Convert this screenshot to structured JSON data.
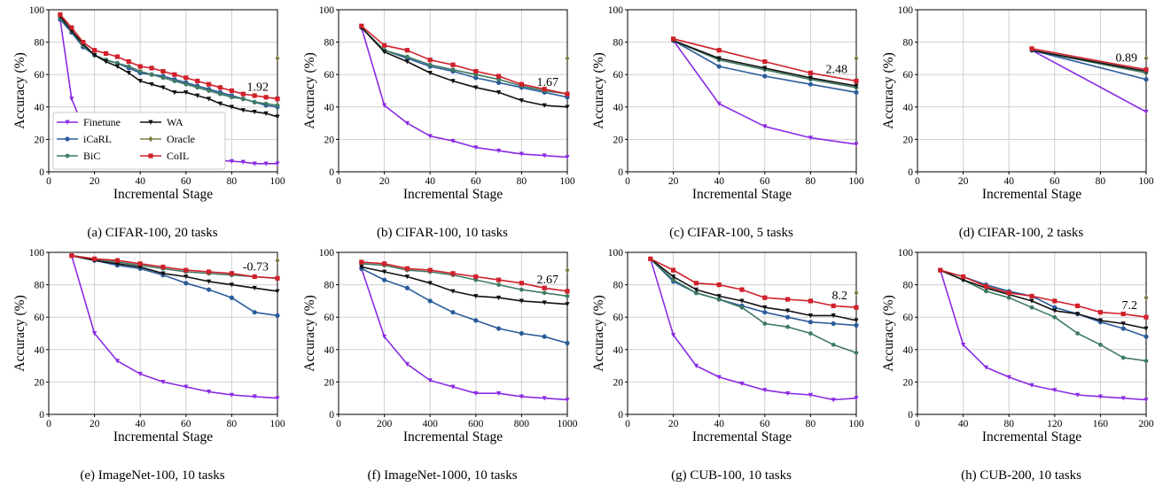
{
  "figure": {
    "colors": {
      "Finetune": "#8a2be2",
      "iCaRL": "#2a5c9a",
      "BiC": "#3f7a62",
      "WA": "#111111",
      "Oracle": "#7f7a45",
      "CoIL": "#d0202a",
      "grid": "#cfcfcf"
    },
    "legend": {
      "placement": "lower-left (panel a only)",
      "entries": [
        "Finetune",
        "WA",
        "iCaRL",
        "Oracle",
        "BiC",
        "CoIL"
      ]
    }
  },
  "chart_data": [
    {
      "type": "line",
      "caption": "(a) CIFAR-100, 20 tasks",
      "xlabel": "Incremental Stage",
      "ylabel": "Accuracy (%)",
      "xlim": [
        0,
        100
      ],
      "ylim": [
        0,
        100
      ],
      "xticks": [
        0,
        20,
        40,
        60,
        80,
        100
      ],
      "yticks": [
        0,
        20,
        40,
        60,
        80,
        100
      ],
      "grid": true,
      "annotation": "1.92",
      "x": [
        5,
        10,
        15,
        20,
        25,
        30,
        35,
        40,
        45,
        50,
        55,
        60,
        65,
        70,
        75,
        80,
        85,
        90,
        95,
        100
      ],
      "series": [
        {
          "name": "Finetune",
          "values": [
            94,
            45,
            28,
            20,
            16,
            14,
            12,
            11,
            10,
            9.5,
            9,
            8.5,
            8,
            7.5,
            7,
            6.5,
            6,
            5,
            5,
            5
          ]
        },
        {
          "name": "iCaRL",
          "values": [
            94,
            86,
            77,
            72,
            69,
            67,
            64,
            61,
            60,
            59,
            57,
            55,
            53,
            51,
            49,
            47,
            45,
            43,
            41,
            40
          ]
        },
        {
          "name": "BiC",
          "values": [
            95,
            87,
            78,
            72,
            69,
            67,
            65,
            62,
            60,
            58,
            56,
            54,
            52,
            50,
            48,
            46,
            45,
            43,
            42,
            41
          ]
        },
        {
          "name": "WA",
          "values": [
            96,
            87,
            79,
            72,
            68,
            65,
            61,
            56,
            54,
            52,
            49,
            49,
            47,
            45,
            42,
            40,
            38,
            37,
            36,
            34
          ]
        },
        {
          "name": "CoIL",
          "values": [
            97,
            89,
            80,
            75,
            73,
            71,
            68,
            65,
            64,
            62,
            60,
            58,
            56,
            54,
            52,
            50,
            48,
            47,
            46,
            45
          ]
        },
        {
          "name": "Oracle",
          "values": [
            null,
            null,
            null,
            null,
            null,
            null,
            null,
            null,
            null,
            null,
            null,
            null,
            null,
            null,
            null,
            null,
            null,
            null,
            null,
            70
          ]
        }
      ]
    },
    {
      "type": "line",
      "caption": "(b) CIFAR-100, 10 tasks",
      "xlabel": "Incremental Stage",
      "ylabel": "Accuracy (%)",
      "xlim": [
        0,
        100
      ],
      "ylim": [
        0,
        100
      ],
      "xticks": [
        0,
        20,
        40,
        60,
        80,
        100
      ],
      "yticks": [
        0,
        20,
        40,
        60,
        80,
        100
      ],
      "grid": true,
      "annotation": "1.67",
      "x": [
        10,
        20,
        30,
        40,
        50,
        60,
        70,
        80,
        90,
        100
      ],
      "series": [
        {
          "name": "Finetune",
          "values": [
            89,
            41,
            30,
            22,
            19,
            15,
            13,
            11,
            10,
            9
          ]
        },
        {
          "name": "iCaRL",
          "values": [
            89,
            75,
            70,
            65,
            62,
            58,
            55,
            52,
            49,
            46
          ]
        },
        {
          "name": "BiC",
          "values": [
            89,
            75,
            71,
            66,
            63,
            60,
            57,
            53,
            50,
            48
          ]
        },
        {
          "name": "WA",
          "values": [
            89,
            74,
            68,
            61,
            56,
            52,
            49,
            44,
            41,
            40
          ]
        },
        {
          "name": "CoIL",
          "values": [
            90,
            78,
            75,
            69,
            66,
            62,
            59,
            54,
            51,
            48
          ]
        },
        {
          "name": "Oracle",
          "values": [
            null,
            null,
            null,
            null,
            null,
            null,
            null,
            null,
            null,
            70
          ]
        }
      ]
    },
    {
      "type": "line",
      "caption": "(c) CIFAR-100, 5 tasks",
      "xlabel": "Incremental Stage",
      "ylabel": "Accuracy (%)",
      "xlim": [
        0,
        100
      ],
      "ylim": [
        0,
        100
      ],
      "xticks": [
        0,
        20,
        40,
        60,
        80,
        100
      ],
      "yticks": [
        0,
        20,
        40,
        60,
        80,
        100
      ],
      "grid": true,
      "annotation": "2.48",
      "x": [
        20,
        40,
        60,
        80,
        100
      ],
      "series": [
        {
          "name": "Finetune",
          "values": [
            81,
            42,
            28,
            21,
            17
          ]
        },
        {
          "name": "iCaRL",
          "values": [
            81,
            65,
            59,
            54,
            49
          ]
        },
        {
          "name": "BiC",
          "values": [
            81,
            69,
            63,
            57,
            52
          ]
        },
        {
          "name": "WA",
          "values": [
            81,
            70,
            64,
            58,
            53
          ]
        },
        {
          "name": "CoIL",
          "values": [
            82,
            75,
            68,
            61,
            56
          ]
        },
        {
          "name": "Oracle",
          "values": [
            null,
            null,
            null,
            null,
            70
          ]
        }
      ]
    },
    {
      "type": "line",
      "caption": "(d) CIFAR-100, 2 tasks",
      "xlabel": "Incremental Stage",
      "ylabel": "Accuracy (%)",
      "xlim": [
        0,
        100
      ],
      "ylim": [
        0,
        100
      ],
      "xticks": [
        0,
        20,
        40,
        60,
        80,
        100
      ],
      "yticks": [
        0,
        20,
        40,
        60,
        80,
        100
      ],
      "grid": true,
      "annotation": "0.89",
      "x": [
        50,
        100
      ],
      "series": [
        {
          "name": "Finetune",
          "values": [
            75,
            37
          ]
        },
        {
          "name": "iCaRL",
          "values": [
            75,
            57
          ]
        },
        {
          "name": "BiC",
          "values": [
            75,
            61
          ]
        },
        {
          "name": "WA",
          "values": [
            75,
            62
          ]
        },
        {
          "name": "CoIL",
          "values": [
            76,
            63
          ]
        },
        {
          "name": "Oracle",
          "values": [
            null,
            70
          ]
        }
      ]
    },
    {
      "type": "line",
      "caption": "(e) ImageNet-100, 10 tasks",
      "xlabel": "Incremental Stage",
      "ylabel": "Accuracy (%)",
      "xlim": [
        0,
        100
      ],
      "ylim": [
        0,
        100
      ],
      "xticks": [
        0,
        20,
        40,
        60,
        80,
        100
      ],
      "yticks": [
        0,
        20,
        40,
        60,
        80,
        100
      ],
      "grid": true,
      "annotation": "-0.73",
      "x": [
        10,
        20,
        30,
        40,
        50,
        60,
        70,
        80,
        90,
        100
      ],
      "series": [
        {
          "name": "Finetune",
          "values": [
            98,
            50,
            33,
            25,
            20,
            17,
            14,
            12,
            11,
            10
          ]
        },
        {
          "name": "iCaRL",
          "values": [
            98,
            95,
            92,
            90,
            86,
            81,
            77,
            72,
            63,
            61
          ]
        },
        {
          "name": "BiC",
          "values": [
            98,
            96,
            94,
            92,
            90,
            88,
            87,
            86,
            85,
            84
          ]
        },
        {
          "name": "WA",
          "values": [
            98,
            95,
            93,
            91,
            87,
            85,
            82,
            80,
            78,
            76
          ]
        },
        {
          "name": "CoIL",
          "values": [
            98,
            96,
            95,
            93,
            91,
            89,
            88,
            87,
            85,
            84
          ]
        },
        {
          "name": "Oracle",
          "values": [
            null,
            null,
            null,
            null,
            null,
            null,
            null,
            null,
            null,
            95
          ]
        }
      ]
    },
    {
      "type": "line",
      "caption": "(f) ImageNet-1000, 10 tasks",
      "xlabel": "Incremental Stage",
      "ylabel": "Accuracy (%)",
      "xlim": [
        0,
        1000
      ],
      "ylim": [
        0,
        100
      ],
      "xticks": [
        0,
        200,
        400,
        600,
        800,
        1000
      ],
      "yticks": [
        0,
        20,
        40,
        60,
        80,
        100
      ],
      "grid": true,
      "annotation": "2.67",
      "x": [
        100,
        200,
        300,
        400,
        500,
        600,
        700,
        800,
        900,
        1000
      ],
      "series": [
        {
          "name": "Finetune",
          "values": [
            90,
            48,
            31,
            21,
            17,
            13,
            13,
            11,
            10,
            9
          ]
        },
        {
          "name": "iCaRL",
          "values": [
            90,
            83,
            78,
            70,
            63,
            58,
            53,
            50,
            48,
            44
          ]
        },
        {
          "name": "BiC",
          "values": [
            93,
            92,
            89,
            88,
            86,
            83,
            80,
            77,
            75,
            73
          ]
        },
        {
          "name": "WA",
          "values": [
            91,
            88,
            85,
            81,
            76,
            73,
            72,
            70,
            69,
            68
          ]
        },
        {
          "name": "CoIL",
          "values": [
            94,
            93,
            90,
            89,
            87,
            85,
            83,
            81,
            78,
            76
          ]
        },
        {
          "name": "Oracle",
          "values": [
            null,
            null,
            null,
            null,
            null,
            null,
            null,
            null,
            null,
            89
          ]
        }
      ]
    },
    {
      "type": "line",
      "caption": "(g) CUB-100, 10 tasks",
      "xlabel": "Incremental Stage",
      "ylabel": "Accuracy (%)",
      "xlim": [
        0,
        100
      ],
      "ylim": [
        0,
        100
      ],
      "xticks": [
        0,
        20,
        40,
        60,
        80,
        100
      ],
      "yticks": [
        0,
        20,
        40,
        60,
        80,
        100
      ],
      "grid": true,
      "annotation": "8.2",
      "x": [
        10,
        20,
        30,
        40,
        50,
        60,
        70,
        80,
        90,
        100
      ],
      "series": [
        {
          "name": "Finetune",
          "values": [
            96,
            49,
            30,
            23,
            19,
            15,
            13,
            12,
            9,
            10
          ]
        },
        {
          "name": "iCaRL",
          "values": [
            96,
            82,
            75,
            71,
            67,
            63,
            60,
            57,
            56,
            55
          ]
        },
        {
          "name": "BiC",
          "values": [
            96,
            83,
            75,
            71,
            66,
            56,
            54,
            50,
            43,
            38
          ]
        },
        {
          "name": "WA",
          "values": [
            96,
            85,
            77,
            73,
            70,
            66,
            64,
            61,
            61,
            58
          ]
        },
        {
          "name": "CoIL",
          "values": [
            96,
            89,
            81,
            80,
            77,
            72,
            71,
            70,
            67,
            66
          ]
        },
        {
          "name": "Oracle",
          "values": [
            null,
            null,
            null,
            null,
            null,
            null,
            null,
            null,
            null,
            75
          ]
        }
      ]
    },
    {
      "type": "line",
      "caption": "(h) CUB-200, 10 tasks",
      "xlabel": "Incremental Stage",
      "ylabel": "Accuracy (%)",
      "xlim": [
        0,
        200
      ],
      "ylim": [
        0,
        100
      ],
      "xticks": [
        0,
        40,
        80,
        120,
        160,
        200
      ],
      "yticks": [
        0,
        20,
        40,
        60,
        80,
        100
      ],
      "grid": true,
      "annotation": "7.2",
      "x": [
        20,
        40,
        60,
        80,
        100,
        120,
        140,
        160,
        180,
        200
      ],
      "series": [
        {
          "name": "Finetune",
          "values": [
            89,
            43,
            29,
            23,
            18,
            15,
            12,
            11,
            10,
            9
          ]
        },
        {
          "name": "iCaRL",
          "values": [
            89,
            85,
            80,
            76,
            73,
            66,
            62,
            57,
            53,
            48
          ]
        },
        {
          "name": "BiC",
          "values": [
            89,
            83,
            76,
            72,
            66,
            60,
            50,
            43,
            35,
            33
          ]
        },
        {
          "name": "WA",
          "values": [
            89,
            83,
            78,
            74,
            70,
            64,
            62,
            58,
            56,
            53
          ]
        },
        {
          "name": "CoIL",
          "values": [
            89,
            85,
            79,
            75,
            73,
            70,
            67,
            63,
            62,
            60
          ]
        },
        {
          "name": "Oracle",
          "values": [
            null,
            null,
            null,
            null,
            null,
            null,
            null,
            null,
            null,
            72
          ]
        }
      ]
    }
  ]
}
